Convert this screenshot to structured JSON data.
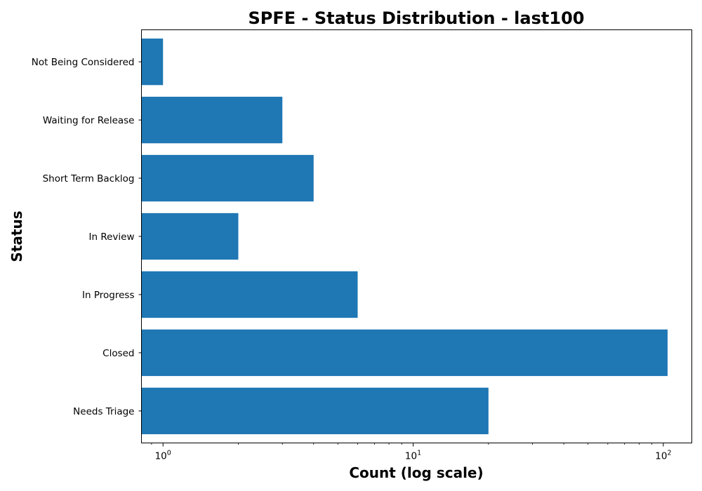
{
  "chart_data": {
    "type": "bar",
    "orientation": "horizontal",
    "title": "SPFE - Status Distribution - last100",
    "xlabel": "Count (log scale)",
    "ylabel": "Status",
    "x_scale": "log",
    "xlim": [
      0.82,
      130
    ],
    "x_ticks": [
      {
        "base": "10",
        "exp": "0",
        "value": 1
      },
      {
        "base": "10",
        "exp": "1",
        "value": 10
      },
      {
        "base": "10",
        "exp": "2",
        "value": 100
      }
    ],
    "grid": false,
    "bar_color": "#1f77b4",
    "categories": [
      "Needs Triage",
      "Closed",
      "In Progress",
      "In Review",
      "Short Term Backlog",
      "Waiting for Release",
      "Not Being Considered"
    ],
    "values": [
      20,
      104,
      6,
      2,
      4,
      3,
      1
    ]
  }
}
